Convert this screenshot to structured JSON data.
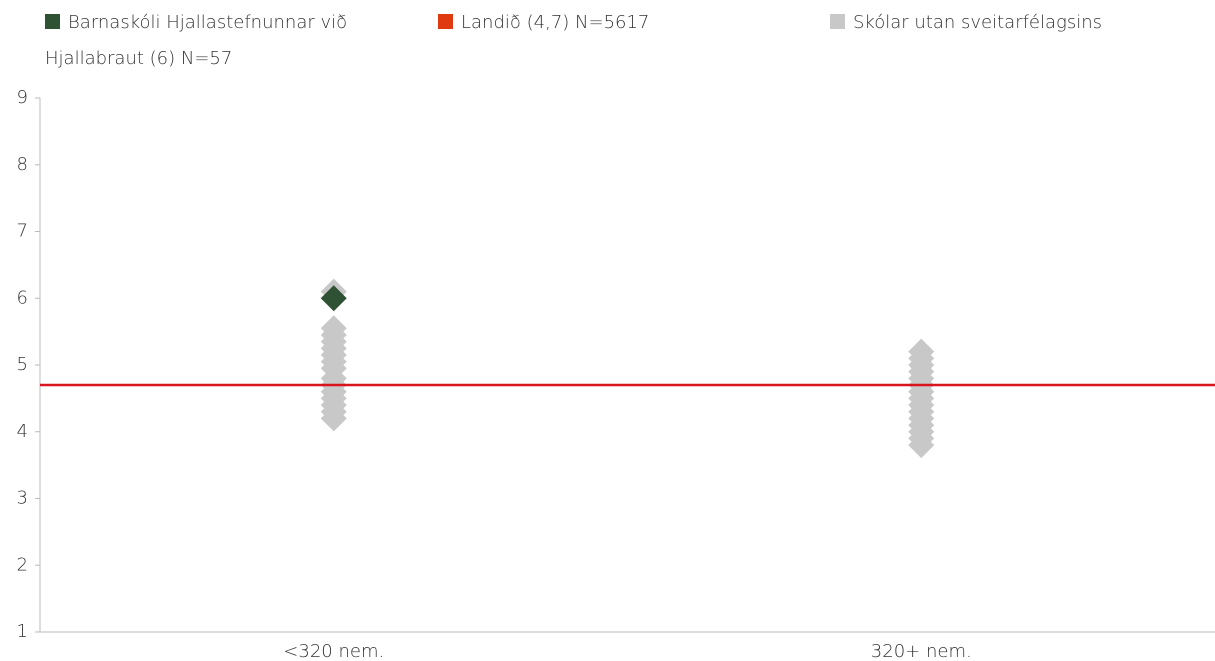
{
  "chart_data": {
    "type": "scatter",
    "categories": [
      "<320 nem.",
      "320+ nem."
    ],
    "ylim": [
      1,
      9
    ],
    "yticks": [
      1,
      2,
      3,
      4,
      5,
      6,
      7,
      8,
      9
    ],
    "grid": false,
    "legend": "top",
    "series": [
      {
        "name": "Skólar utan sveitarfélagsins",
        "color": "#c8c8c8",
        "mark": "diamond",
        "x": [
          "<320 nem.",
          "<320 nem.",
          "<320 nem.",
          "<320 nem.",
          "<320 nem.",
          "<320 nem.",
          "<320 nem.",
          "<320 nem.",
          "<320 nem.",
          "<320 nem.",
          "<320 nem.",
          "<320 nem.",
          "<320 nem.",
          "<320 nem.",
          "<320 nem.",
          "320+ nem.",
          "320+ nem.",
          "320+ nem.",
          "320+ nem.",
          "320+ nem.",
          "320+ nem.",
          "320+ nem.",
          "320+ nem.",
          "320+ nem.",
          "320+ nem.",
          "320+ nem.",
          "320+ nem.",
          "320+ nem.",
          "320+ nem.",
          "320+ nem."
        ],
        "values": [
          6.1,
          5.55,
          5.45,
          5.35,
          5.25,
          5.15,
          5.05,
          4.95,
          4.8,
          4.7,
          4.6,
          4.5,
          4.4,
          4.3,
          4.2,
          5.2,
          5.1,
          5.0,
          4.9,
          4.8,
          4.7,
          4.6,
          4.5,
          4.4,
          4.3,
          4.2,
          4.1,
          4.0,
          3.9,
          3.8
        ]
      },
      {
        "name": "Barnaskóli Hjallastefnunnar við Hjallabraut (6) N=57",
        "color": "#2e5233",
        "mark": "diamond",
        "x": [
          "<320 nem."
        ],
        "values": [
          6.0
        ]
      },
      {
        "name": "Landið (4,7) N=5617",
        "color": "#d8141c",
        "mark": "hline",
        "values": [
          4.7
        ]
      }
    ]
  }
}
